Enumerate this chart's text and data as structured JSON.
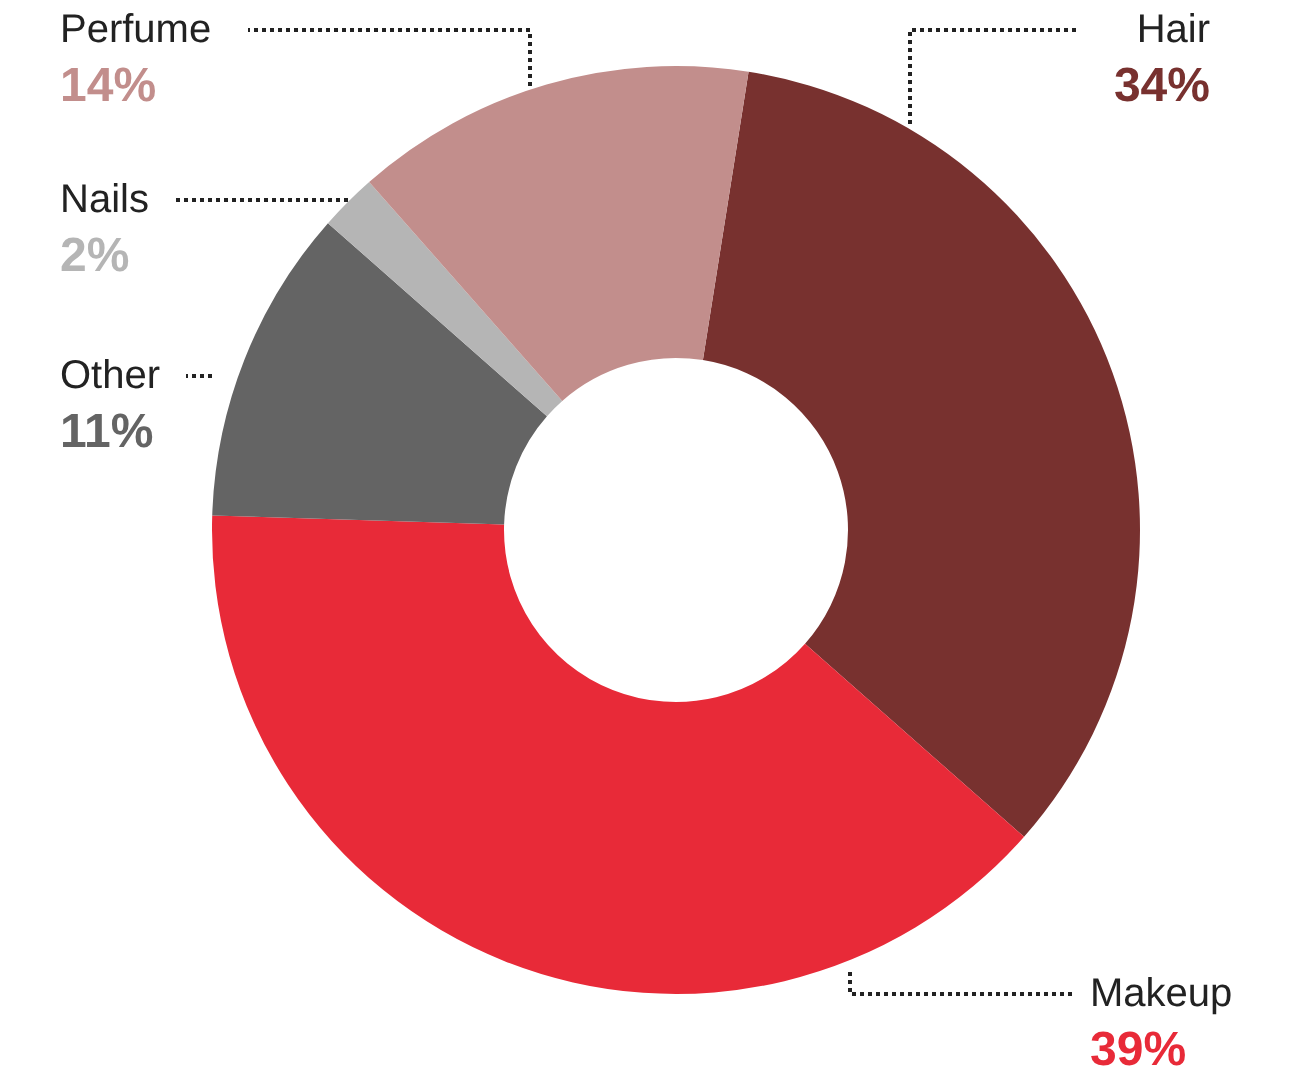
{
  "chart_data": {
    "type": "donut",
    "categories": [
      "Hair",
      "Makeup",
      "Other",
      "Nails",
      "Perfume"
    ],
    "values": [
      34,
      39,
      11,
      2,
      14
    ],
    "value_labels": [
      "34%",
      "39%",
      "11%",
      "2%",
      "14%"
    ],
    "colors": [
      "#78312f",
      "#e82a38",
      "#646464",
      "#b5b5b5",
      "#c28e8c"
    ],
    "legend": false
  }
}
